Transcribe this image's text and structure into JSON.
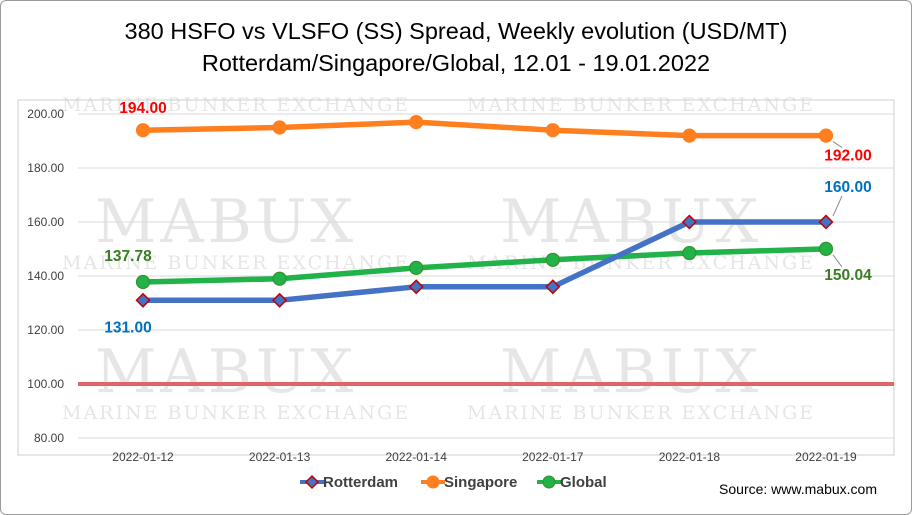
{
  "chart_data": {
    "type": "line",
    "title": "380 HSFO vs VLSFO (SS) Spread, Weekly evolution (USD/MT)",
    "subtitle": "Rotterdam/Singapore/Global, 12.01 - 19.01.2022",
    "categories": [
      "2022-01-12",
      "2022-01-13",
      "2022-01-14",
      "2022-01-17",
      "2022-01-18",
      "2022-01-19"
    ],
    "ylim": [
      80,
      200
    ],
    "yticks": [
      80,
      100,
      120,
      140,
      160,
      180,
      200
    ],
    "ytick_labels": [
      "80.00",
      "100.00",
      "120.00",
      "140.00",
      "160.00",
      "180.00",
      "200.00"
    ],
    "grid": true,
    "reference_line": {
      "value": 100,
      "color": "#e06666"
    },
    "series": [
      {
        "name": "Rotterdam",
        "values": [
          131,
          131,
          136,
          136,
          160,
          160
        ],
        "color": "#4472c4",
        "marker": "diamond",
        "marker_color": "#c00000",
        "data_labels": [
          {
            "index": 0,
            "text": "131.00",
            "color": "#0070c0"
          },
          {
            "index": 5,
            "text": "160.00",
            "color": "#0070c0"
          }
        ]
      },
      {
        "name": "Singapore",
        "values": [
          194,
          195,
          197,
          194,
          192,
          192
        ],
        "color": "#ff7f1e",
        "marker": "circle",
        "marker_color": "#ff7f1e",
        "data_labels": [
          {
            "index": 0,
            "text": "194.00",
            "color": "#ff0000"
          },
          {
            "index": 5,
            "text": "192.00",
            "color": "#ff0000"
          }
        ]
      },
      {
        "name": "Global",
        "values": [
          137.78,
          139,
          143,
          146,
          148.5,
          150.04
        ],
        "color": "#21b24a",
        "marker": "circle",
        "marker_color": "#3c8f2a",
        "data_labels": [
          {
            "index": 0,
            "text": "137.78",
            "color": "#3a7d22"
          },
          {
            "index": 5,
            "text": "150.04",
            "color": "#3a7d22"
          }
        ]
      }
    ],
    "legend_placement": "bottom",
    "source": "Source: www.mabux.com"
  },
  "watermark": {
    "big": "MABUX",
    "small": "MARINE BUNKER EXCHANGE"
  }
}
